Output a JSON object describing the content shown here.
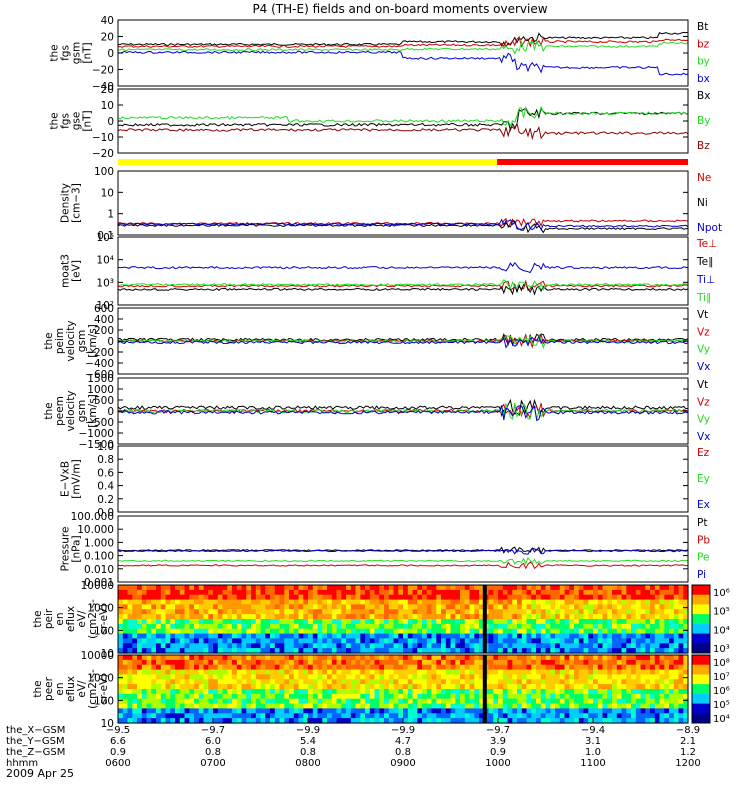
{
  "title": "P4 (TH-E) fields and on-board moments overview",
  "date_label": "2009 Apr 25",
  "colors": {
    "black": "#000000",
    "red": "#cc0000",
    "green": "#22dd22",
    "blue": "#0000cc",
    "darkred": "#8b0000",
    "state_yellow": "#ffff00",
    "state_red": "#ff0000"
  },
  "chart_data": [
    {
      "id": "p1",
      "type": "line",
      "ylabel": [
        "the",
        "fgs",
        "gsm",
        "[nT]"
      ],
      "ylim": [
        -40,
        40
      ],
      "ticks": [
        "40",
        "20",
        "0",
        "−20",
        "−40"
      ],
      "series": [
        {
          "name": "Bt",
          "color": "#000000"
        },
        {
          "name": "bz",
          "color": "#cc0000"
        },
        {
          "name": "by",
          "color": "#22dd22"
        },
        {
          "name": "bx",
          "color": "#0000cc"
        }
      ]
    },
    {
      "id": "p2",
      "type": "line",
      "ylabel": [
        "the",
        "fgs",
        "gse",
        "[nT]"
      ],
      "ylim": [
        -25,
        25
      ],
      "ticks": [
        "20",
        "10",
        "0",
        "−10",
        "−20"
      ],
      "series": [
        {
          "name": "Bx",
          "color": "#000000"
        },
        {
          "name": "By",
          "color": "#22dd22"
        },
        {
          "name": "Bz",
          "color": "#8b0000"
        }
      ]
    },
    {
      "id": "p3",
      "type": "line",
      "ylabel": [
        "Density",
        "[cm−3]"
      ],
      "log": true,
      "ticks": [
        "100",
        "10",
        "1",
        "0.1"
      ],
      "series": [
        {
          "name": "Ne",
          "color": "#cc0000"
        },
        {
          "name": "Ni",
          "color": "#000000"
        },
        {
          "name": "Npot",
          "color": "#0000cc"
        }
      ]
    },
    {
      "id": "p4",
      "type": "line",
      "ylabel": [
        "moat3",
        "[eV]"
      ],
      "log": true,
      "ticks": [
        "10⁵",
        "10⁴",
        "10³",
        "10²"
      ],
      "series": [
        {
          "name": "Te⊥",
          "color": "#cc0000"
        },
        {
          "name": "Te∥",
          "color": "#000000"
        },
        {
          "name": "Ti⊥",
          "color": "#0000cc"
        },
        {
          "name": "Ti∥",
          "color": "#22dd22"
        }
      ]
    },
    {
      "id": "p5",
      "type": "line",
      "ylabel": [
        "the",
        "peim",
        "velocity",
        "gsm",
        "[km/s]"
      ],
      "ylim": [
        -600,
        600
      ],
      "ticks": [
        "600",
        "400",
        "200",
        "0",
        "−200",
        "−400",
        "−600"
      ],
      "series": [
        {
          "name": "Vt",
          "color": "#000000"
        },
        {
          "name": "Vz",
          "color": "#cc0000"
        },
        {
          "name": "Vy",
          "color": "#22dd22"
        },
        {
          "name": "Vx",
          "color": "#0000cc"
        }
      ]
    },
    {
      "id": "p6",
      "type": "line",
      "ylabel": [
        "the",
        "peem",
        "velocity",
        "gsm",
        "[km/s]"
      ],
      "ylim": [
        -1500,
        1500
      ],
      "ticks": [
        "1500",
        "1000",
        "500",
        "0",
        "−500",
        "−1000",
        "−1500"
      ],
      "series": [
        {
          "name": "Vt",
          "color": "#000000"
        },
        {
          "name": "Vz",
          "color": "#cc0000"
        },
        {
          "name": "Vy",
          "color": "#22dd22"
        },
        {
          "name": "Vx",
          "color": "#0000cc"
        }
      ]
    },
    {
      "id": "p7",
      "type": "line",
      "ylabel": [
        "E−VxB",
        "[mV/m]"
      ],
      "ylim": [
        0,
        1
      ],
      "ticks": [
        "1.0",
        "0.8",
        "0.6",
        "0.4",
        "0.2",
        "0.0"
      ],
      "series": [
        {
          "name": "Ez",
          "color": "#cc0000"
        },
        {
          "name": "Ey",
          "color": "#22dd22"
        },
        {
          "name": "Ex",
          "color": "#0000cc"
        }
      ]
    },
    {
      "id": "p8",
      "type": "line",
      "ylabel": [
        "Pressure",
        "[nPa]"
      ],
      "log": true,
      "ticks": [
        "100.000",
        "10.000",
        "1.000",
        "0.100",
        "0.010",
        "0.001"
      ],
      "series": [
        {
          "name": "Pt",
          "color": "#000000"
        },
        {
          "name": "Pb",
          "color": "#cc0000"
        },
        {
          "name": "Pe",
          "color": "#22dd22"
        },
        {
          "name": "Pi",
          "color": "#0000cc"
        }
      ]
    },
    {
      "id": "p9",
      "type": "heatmap",
      "ylabel": [
        "the",
        "peir",
        "en",
        "eflux",
        "eV/",
        "(cm2-s-",
        "sr-eV)"
      ],
      "ticks": [
        "10000",
        "1000",
        "100",
        "10"
      ],
      "colorbar_ticks": [
        "10⁶",
        "10⁵",
        "10⁴",
        "10³"
      ]
    },
    {
      "id": "p10",
      "type": "heatmap",
      "ylabel": [
        "the",
        "peer",
        "en",
        "eflux",
        "eV/",
        "(cm2-s-",
        "sr-eV)"
      ],
      "ticks": [
        "10000",
        "1000",
        "100",
        "10"
      ],
      "colorbar_ticks": [
        "10⁸",
        "10⁷",
        "10⁶",
        "10⁵",
        "10⁴"
      ]
    }
  ],
  "xaxis": {
    "row_labels": [
      "the_X−GSM",
      "the_Y−GSM",
      "the_Z−GSM",
      "hhmm"
    ],
    "columns": [
      [
        "−9.5",
        "6.6",
        "0.9",
        "0600"
      ],
      [
        "−9.7",
        "6.0",
        "0.8",
        "0700"
      ],
      [
        "−9.9",
        "5.4",
        "0.8",
        "0800"
      ],
      [
        "−9.9",
        "4.7",
        "0.8",
        "0900"
      ],
      [
        "−9.7",
        "3.9",
        "0.9",
        "1000"
      ],
      [
        "−9.4",
        "3.1",
        "1.0",
        "1100"
      ],
      [
        "−8.9",
        "2.1",
        "1.2",
        "1200"
      ]
    ]
  }
}
